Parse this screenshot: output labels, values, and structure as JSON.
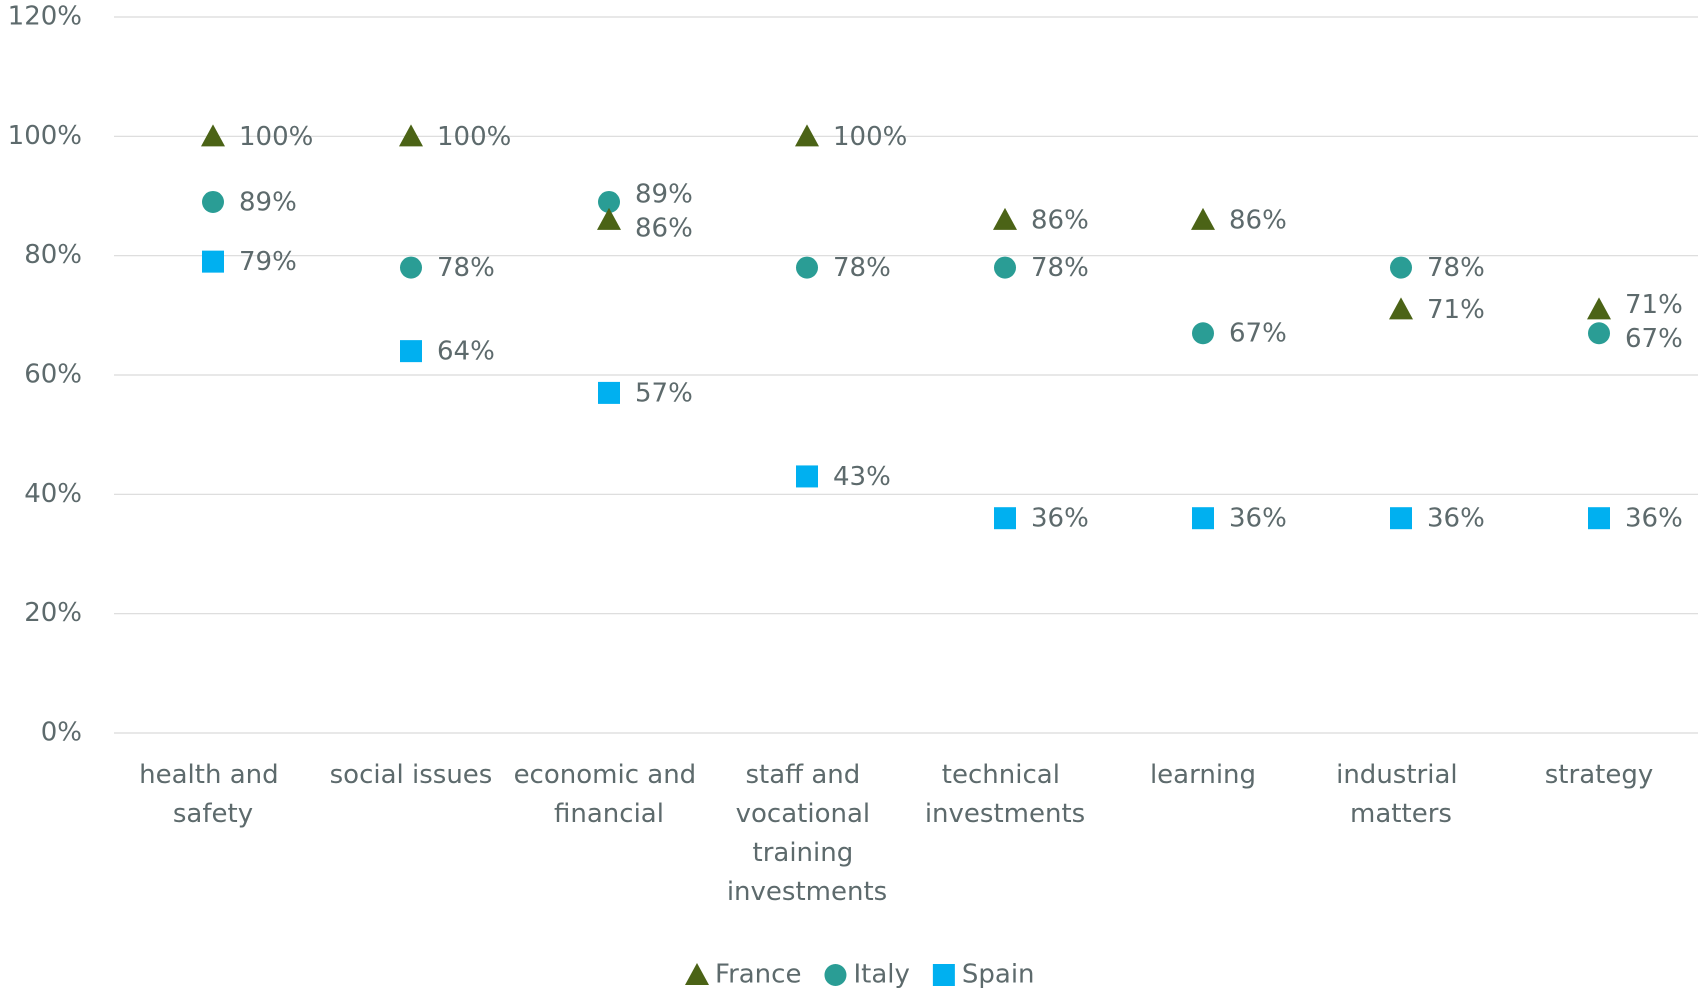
{
  "chart_data": {
    "type": "dot",
    "categories": [
      "health and safety",
      "social issues",
      "economic and financial",
      "staff and vocational training investments",
      "technical investments",
      "learning",
      "industrial matters",
      "strategy"
    ],
    "series": [
      {
        "name": "France",
        "color": "#4b6316",
        "marker": "triangle",
        "values": [
          100,
          100,
          86,
          100,
          86,
          86,
          71,
          71
        ],
        "value_labels": [
          "100%",
          "100%",
          "86%",
          "100%",
          "86%",
          "86%",
          "71%",
          "71%"
        ]
      },
      {
        "name": "Italy",
        "color": "#2a9d95",
        "marker": "circle",
        "values": [
          89,
          78,
          89,
          78,
          78,
          67,
          78,
          67
        ],
        "value_labels": [
          "89%",
          "78%",
          "89%",
          "78%",
          "78%",
          "67%",
          "78%",
          "67%"
        ]
      },
      {
        "name": "Spain",
        "color": "#00b0f0",
        "marker": "square",
        "values": [
          79,
          64,
          57,
          43,
          36,
          36,
          36,
          36
        ],
        "value_labels": [
          "79%",
          "64%",
          "57%",
          "43%",
          "36%",
          "36%",
          "36%",
          "36%"
        ]
      }
    ],
    "ylim": [
      0,
      120
    ],
    "yticks": [
      {
        "value": 0,
        "label": "0%"
      },
      {
        "value": 20,
        "label": "20%"
      },
      {
        "value": 40,
        "label": "40%"
      },
      {
        "value": 60,
        "label": "60%"
      },
      {
        "value": 80,
        "label": "80%"
      },
      {
        "value": 100,
        "label": "100%"
      },
      {
        "value": 120,
        "label": "120%"
      }
    ],
    "grid": true,
    "legend": "bottom"
  }
}
